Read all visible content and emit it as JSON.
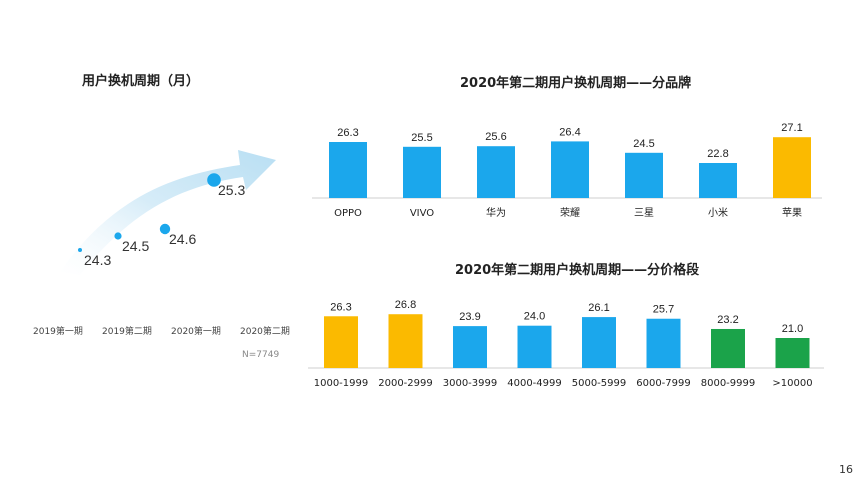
{
  "left": {
    "title": "用户换机周期（月）",
    "note": "N=7749"
  },
  "brand": {
    "title": "2020年第二期用户换机周期——分品牌"
  },
  "price": {
    "title": "2020年第二期用户换机周期——分价格段"
  },
  "page_number": "16",
  "colors": {
    "blue": "#1BA7EC",
    "yellow": "#FBBA00",
    "green": "#1BA34A",
    "arrow": "#E4F2FA"
  },
  "chart_data": [
    {
      "type": "line",
      "title": "用户换机周期（月）",
      "categories": [
        "2019第一期",
        "2019第二期",
        "2020第一期",
        "2020第二期"
      ],
      "values": [
        24.3,
        24.5,
        24.6,
        25.3
      ]
    },
    {
      "type": "bar",
      "title": "2020年第二期用户换机周期——分品牌",
      "categories": [
        "OPPO",
        "VIVO",
        "华为",
        "荣耀",
        "三星",
        "小米",
        "苹果"
      ],
      "values": [
        26.3,
        25.5,
        25.6,
        26.4,
        24.5,
        22.8,
        27.1
      ],
      "bar_colors": [
        "blue",
        "blue",
        "blue",
        "blue",
        "blue",
        "blue",
        "yellow"
      ]
    },
    {
      "type": "bar",
      "title": "2020年第二期用户换机周期——分价格段",
      "categories": [
        "1000-1999",
        "2000-2999",
        "3000-3999",
        "4000-4999",
        "5000-5999",
        "6000-7999",
        "8000-9999",
        ">10000"
      ],
      "values": [
        26.3,
        26.8,
        23.9,
        24.0,
        26.1,
        25.7,
        23.2,
        21.0
      ],
      "bar_colors": [
        "yellow",
        "yellow",
        "blue",
        "blue",
        "blue",
        "blue",
        "green",
        "green"
      ]
    }
  ]
}
